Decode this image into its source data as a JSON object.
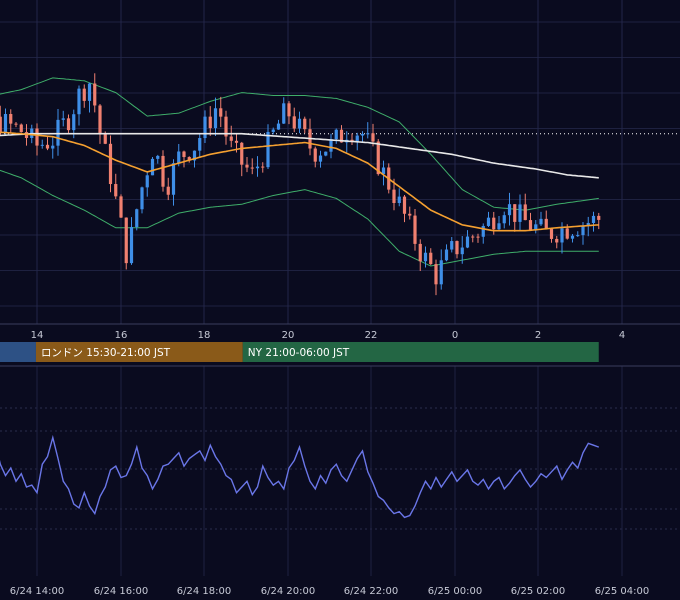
{
  "chart_data": [
    {
      "type": "candlestick",
      "panel": "price",
      "title": "",
      "hour_ticks": [
        "14",
        "16",
        "18",
        "20",
        "22",
        "0",
        "2",
        "4"
      ],
      "y_range_relative": [
        0,
        100
      ],
      "grid": true,
      "reference_line_level": 62,
      "overlays": [
        {
          "kind": "moving-average-fast",
          "color": "#f5a030"
        },
        {
          "kind": "moving-average-slow",
          "color": "#e8e8e8"
        },
        {
          "kind": "bollinger-bands",
          "color": "#3fae6a"
        }
      ],
      "candle_colors": {
        "up": "#3f8fe8",
        "down": "#f08070"
      },
      "close_path": [
        [
          0,
          58
        ],
        [
          4,
          62
        ],
        [
          7,
          66
        ],
        [
          9,
          63
        ],
        [
          10.5,
          58
        ],
        [
          12,
          60
        ],
        [
          13.6,
          68
        ],
        [
          14.6,
          76
        ],
        [
          15.6,
          80
        ],
        [
          16.5,
          62
        ],
        [
          17.5,
          48
        ],
        [
          18.3,
          34
        ],
        [
          19.1,
          20
        ],
        [
          20.2,
          40
        ],
        [
          21.6,
          58
        ],
        [
          22.8,
          44
        ],
        [
          24.0,
          54
        ],
        [
          25.5,
          58
        ],
        [
          26.8,
          66
        ],
        [
          27.7,
          72
        ],
        [
          28.8,
          58
        ],
        [
          30.0,
          52
        ],
        [
          31.0,
          48
        ],
        [
          32.2,
          56
        ],
        [
          33.3,
          64
        ],
        [
          34.3,
          70
        ],
        [
          35.4,
          64
        ],
        [
          36.8,
          56
        ],
        [
          38.5,
          58
        ],
        [
          40.2,
          64
        ],
        [
          41.5,
          62
        ],
        [
          43.0,
          52
        ],
        [
          45.0,
          38
        ],
        [
          47.0,
          22
        ],
        [
          48.5,
          14
        ],
        [
          50.0,
          22
        ],
        [
          51.5,
          26
        ],
        [
          53.0,
          30
        ],
        [
          55.0,
          38
        ],
        [
          57.0,
          32
        ],
        [
          59.0,
          28
        ],
        [
          61.0,
          30
        ],
        [
          63.0,
          32
        ],
        [
          64.0,
          33
        ]
      ],
      "fast_ma_path": [
        [
          0,
          66
        ],
        [
          5,
          63
        ],
        [
          9,
          62
        ],
        [
          12,
          61
        ],
        [
          15,
          58
        ],
        [
          18,
          53
        ],
        [
          21,
          49
        ],
        [
          24,
          52
        ],
        [
          27,
          55
        ],
        [
          30,
          57
        ],
        [
          33,
          58
        ],
        [
          36,
          59
        ],
        [
          39,
          57
        ],
        [
          42,
          52
        ],
        [
          45,
          44
        ],
        [
          48,
          36
        ],
        [
          51,
          31
        ],
        [
          54,
          29
        ],
        [
          57,
          29
        ],
        [
          60,
          30
        ],
        [
          64,
          31
        ]
      ],
      "slow_ma_path": [
        [
          0,
          60
        ],
        [
          5,
          61
        ],
        [
          10,
          62
        ],
        [
          14,
          62
        ],
        [
          18,
          62
        ],
        [
          22,
          62
        ],
        [
          26,
          62
        ],
        [
          30,
          62
        ],
        [
          34,
          61
        ],
        [
          38,
          60
        ],
        [
          42,
          59
        ],
        [
          46,
          57
        ],
        [
          50,
          55
        ],
        [
          54,
          52
        ],
        [
          58,
          50
        ],
        [
          61,
          48
        ],
        [
          64,
          47
        ]
      ],
      "band_width_path": [
        [
          0,
          16
        ],
        [
          5,
          18
        ],
        [
          9,
          26
        ],
        [
          12,
          36
        ],
        [
          15,
          40
        ],
        [
          18,
          42
        ],
        [
          21,
          34
        ],
        [
          24,
          30
        ],
        [
          27,
          32
        ],
        [
          30,
          34
        ],
        [
          33,
          30
        ],
        [
          36,
          28
        ],
        [
          39,
          30
        ],
        [
          42,
          34
        ],
        [
          45,
          40
        ],
        [
          48,
          34
        ],
        [
          51,
          20
        ],
        [
          54,
          12
        ],
        [
          57,
          10
        ],
        [
          60,
          12
        ],
        [
          64,
          14
        ]
      ]
    },
    {
      "type": "session-bar",
      "sessions": [
        {
          "label": "",
          "color": "#2d5185",
          "start": 0,
          "end": 10.4
        },
        {
          "label": "ロンドン 15:30-21:00 JST",
          "color": "#8a5a19",
          "start": 10.4,
          "end": 30.1
        },
        {
          "label": "NY 21:00-06:00 JST",
          "color": "#236644",
          "start": 30.1,
          "end": 64
        }
      ]
    },
    {
      "type": "line",
      "panel": "oscillator",
      "color": "#6a76e8",
      "grid": true,
      "y_range_relative": [
        0,
        100
      ],
      "x_ticks": [
        "6/24 14:00",
        "6/24 16:00",
        "6/24 18:00",
        "6/24 20:00",
        "6/24 22:00",
        "6/25 00:00",
        "6/25 02:00",
        "6/25 04:00"
      ],
      "values": [
        [
          0,
          48
        ],
        [
          0.5,
          54
        ],
        [
          1,
          60
        ],
        [
          1.5,
          58
        ],
        [
          2,
          64
        ],
        [
          2.5,
          62
        ],
        [
          3,
          46
        ],
        [
          3.5,
          40
        ],
        [
          4,
          34
        ],
        [
          4.5,
          30
        ],
        [
          5,
          38
        ],
        [
          5.5,
          36
        ],
        [
          6,
          82
        ],
        [
          6.5,
          88
        ],
        [
          7,
          64
        ],
        [
          7.5,
          52
        ],
        [
          8,
          60
        ],
        [
          8.5,
          46
        ],
        [
          9,
          54
        ],
        [
          9.5,
          40
        ],
        [
          10,
          42
        ],
        [
          10.5,
          34
        ],
        [
          11,
          64
        ],
        [
          11.5,
          72
        ],
        [
          12,
          92
        ],
        [
          12.5,
          70
        ],
        [
          13,
          46
        ],
        [
          13.5,
          38
        ],
        [
          14,
          22
        ],
        [
          14.5,
          18
        ],
        [
          15,
          34
        ],
        [
          15.5,
          20
        ],
        [
          16,
          12
        ],
        [
          16.5,
          30
        ],
        [
          17,
          40
        ],
        [
          17.5,
          58
        ],
        [
          18,
          62
        ],
        [
          18.5,
          50
        ],
        [
          19,
          52
        ],
        [
          19.5,
          64
        ],
        [
          20,
          82
        ],
        [
          20.5,
          60
        ],
        [
          21,
          52
        ],
        [
          21.5,
          38
        ],
        [
          22,
          48
        ],
        [
          22.5,
          62
        ],
        [
          23,
          64
        ],
        [
          23.5,
          70
        ],
        [
          24,
          76
        ],
        [
          24.5,
          62
        ],
        [
          25,
          70
        ],
        [
          25.5,
          74
        ],
        [
          26,
          78
        ],
        [
          26.5,
          68
        ],
        [
          27,
          84
        ],
        [
          27.5,
          72
        ],
        [
          28,
          64
        ],
        [
          28.5,
          52
        ],
        [
          29,
          48
        ],
        [
          29.5,
          34
        ],
        [
          30,
          40
        ],
        [
          30.5,
          46
        ],
        [
          31,
          32
        ],
        [
          31.5,
          40
        ],
        [
          32,
          62
        ],
        [
          32.5,
          50
        ],
        [
          33,
          42
        ],
        [
          33.5,
          46
        ],
        [
          34,
          38
        ],
        [
          34.5,
          60
        ],
        [
          35,
          68
        ],
        [
          35.5,
          82
        ],
        [
          36,
          62
        ],
        [
          36.5,
          46
        ],
        [
          37,
          38
        ],
        [
          37.5,
          52
        ],
        [
          38,
          44
        ],
        [
          38.5,
          58
        ],
        [
          39,
          64
        ],
        [
          39.5,
          52
        ],
        [
          40,
          46
        ],
        [
          40.5,
          58
        ],
        [
          41,
          70
        ],
        [
          41.5,
          78
        ],
        [
          42,
          56
        ],
        [
          42.5,
          44
        ],
        [
          43,
          30
        ],
        [
          43.5,
          26
        ],
        [
          44,
          18
        ],
        [
          44.5,
          12
        ],
        [
          45,
          14
        ],
        [
          45.5,
          8
        ],
        [
          46,
          10
        ],
        [
          46.5,
          20
        ],
        [
          47,
          34
        ],
        [
          47.5,
          46
        ],
        [
          48,
          38
        ],
        [
          48.5,
          50
        ],
        [
          49,
          40
        ],
        [
          49.5,
          48
        ],
        [
          50,
          56
        ],
        [
          50.5,
          46
        ],
        [
          51,
          52
        ],
        [
          51.5,
          58
        ],
        [
          52,
          46
        ],
        [
          52.5,
          42
        ],
        [
          53,
          48
        ],
        [
          53.5,
          38
        ],
        [
          54,
          46
        ],
        [
          54.5,
          50
        ],
        [
          55,
          38
        ],
        [
          55.5,
          44
        ],
        [
          56,
          52
        ],
        [
          56.5,
          58
        ],
        [
          57,
          48
        ],
        [
          57.5,
          40
        ],
        [
          58,
          46
        ],
        [
          58.5,
          54
        ],
        [
          59,
          50
        ],
        [
          59.5,
          56
        ],
        [
          60,
          62
        ],
        [
          60.5,
          48
        ],
        [
          61,
          58
        ],
        [
          61.5,
          66
        ],
        [
          62,
          60
        ],
        [
          62.5,
          76
        ],
        [
          63,
          86
        ],
        [
          63.5,
          84
        ],
        [
          64,
          82
        ]
      ]
    }
  ]
}
